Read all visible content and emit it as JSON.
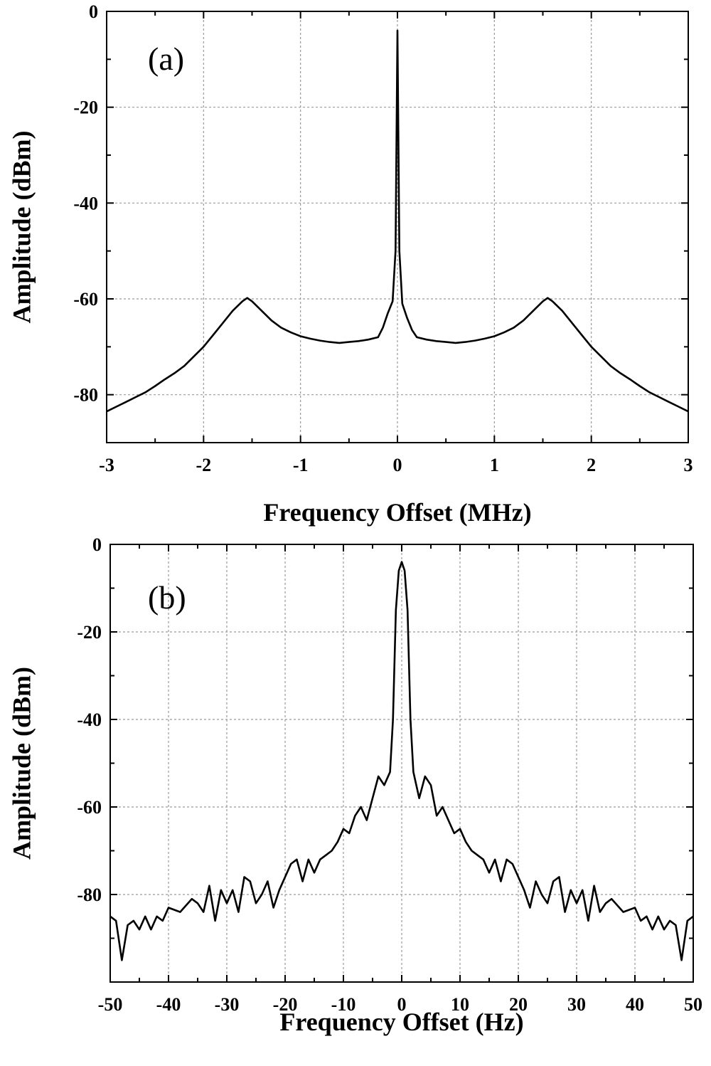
{
  "chart_data": [
    {
      "type": "line",
      "panel_label": "(a)",
      "xlabel": "Frequency Offset (MHz)",
      "ylabel": "Amplitude (dBm)",
      "xlim": [
        -3,
        3
      ],
      "ylim": [
        -90,
        0
      ],
      "x_ticks": [
        "-3",
        "-2",
        "-1",
        "0",
        "1",
        "2",
        "3"
      ],
      "y_ticks": [
        "0",
        "-20",
        "-40",
        "-60",
        "-80"
      ],
      "grid": true,
      "series": [
        {
          "x": [
            -3.0,
            -2.9,
            -2.8,
            -2.7,
            -2.6,
            -2.5,
            -2.4,
            -2.3,
            -2.2,
            -2.1,
            -2.0,
            -1.9,
            -1.8,
            -1.7,
            -1.6,
            -1.55,
            -1.5,
            -1.4,
            -1.3,
            -1.2,
            -1.1,
            -1.0,
            -0.9,
            -0.8,
            -0.7,
            -0.6,
            -0.5,
            -0.4,
            -0.3,
            -0.2,
            -0.15,
            -0.1,
            -0.05,
            -0.02,
            0.0,
            0.02,
            0.05,
            0.1,
            0.15,
            0.2,
            0.3,
            0.4,
            0.5,
            0.6,
            0.7,
            0.8,
            0.9,
            1.0,
            1.1,
            1.2,
            1.3,
            1.4,
            1.5,
            1.55,
            1.6,
            1.7,
            1.8,
            1.9,
            2.0,
            2.1,
            2.2,
            2.3,
            2.4,
            2.5,
            2.6,
            2.7,
            2.8,
            2.9,
            3.0
          ],
          "y": [
            -83.5,
            -82.5,
            -81.5,
            -80.5,
            -79.5,
            -78.2,
            -76.8,
            -75.5,
            -74.0,
            -72.0,
            -70.0,
            -67.5,
            -65.0,
            -62.5,
            -60.5,
            -59.8,
            -60.5,
            -62.5,
            -64.5,
            -66.0,
            -67.0,
            -67.8,
            -68.3,
            -68.7,
            -69.0,
            -69.2,
            -69.0,
            -68.8,
            -68.5,
            -68.0,
            -66.0,
            -63.0,
            -60.5,
            -50.0,
            -4.0,
            -50.0,
            -61.0,
            -64.0,
            -66.5,
            -68.0,
            -68.5,
            -68.8,
            -69.0,
            -69.2,
            -69.0,
            -68.7,
            -68.3,
            -67.8,
            -67.0,
            -66.0,
            -64.5,
            -62.5,
            -60.5,
            -59.8,
            -60.5,
            -62.5,
            -65.0,
            -67.5,
            -70.0,
            -72.0,
            -74.0,
            -75.5,
            -76.8,
            -78.2,
            -79.5,
            -80.5,
            -81.5,
            -82.5,
            -83.5
          ]
        }
      ]
    },
    {
      "type": "line",
      "panel_label": "(b)",
      "xlabel": "Frequency Offset (Hz)",
      "ylabel": "Amplitude (dBm)",
      "xlim": [
        -50,
        50
      ],
      "ylim": [
        -100,
        0
      ],
      "x_ticks": [
        "-50",
        "-40",
        "-30",
        "-20",
        "-10",
        "0",
        "10",
        "20",
        "30",
        "40",
        "50"
      ],
      "y_ticks": [
        "0",
        "-20",
        "-40",
        "-60",
        "-80"
      ],
      "grid": true,
      "series": [
        {
          "x": [
            -50,
            -49,
            -48,
            -47,
            -46,
            -45,
            -44,
            -43,
            -42,
            -41,
            -40,
            -38,
            -36,
            -35,
            -34,
            -33,
            -32,
            -31,
            -30,
            -29,
            -28,
            -27,
            -26,
            -25,
            -24,
            -23,
            -22,
            -21,
            -20,
            -19,
            -18,
            -17,
            -16,
            -15,
            -14,
            -13,
            -12,
            -11,
            -10,
            -9,
            -8,
            -7,
            -6,
            -5,
            -4,
            -3,
            -2,
            -1.5,
            -1,
            -0.5,
            0,
            0.5,
            1,
            1.5,
            2,
            3,
            4,
            5,
            6,
            7,
            8,
            9,
            10,
            11,
            12,
            13,
            14,
            15,
            16,
            17,
            18,
            19,
            20,
            21,
            22,
            23,
            24,
            25,
            26,
            27,
            28,
            29,
            30,
            31,
            32,
            33,
            34,
            35,
            36,
            38,
            40,
            41,
            42,
            43,
            44,
            45,
            46,
            47,
            48,
            49,
            50
          ],
          "y": [
            -85,
            -86,
            -95,
            -87,
            -86,
            -88,
            -85,
            -88,
            -85,
            -86,
            -83,
            -84,
            -81,
            -82,
            -84,
            -78,
            -86,
            -79,
            -82,
            -79,
            -84,
            -76,
            -77,
            -82,
            -80,
            -77,
            -83,
            -79,
            -76,
            -73,
            -72,
            -77,
            -72,
            -75,
            -72,
            -71,
            -70,
            -68,
            -65,
            -66,
            -62,
            -60,
            -63,
            -58,
            -53,
            -55,
            -52,
            -40,
            -15,
            -6,
            -4,
            -6,
            -15,
            -40,
            -52,
            -58,
            -53,
            -55,
            -62,
            -60,
            -63,
            -66,
            -65,
            -68,
            -70,
            -71,
            -72,
            -75,
            -72,
            -77,
            -72,
            -73,
            -76,
            -79,
            -83,
            -77,
            -80,
            -82,
            -77,
            -76,
            -84,
            -79,
            -82,
            -79,
            -86,
            -78,
            -84,
            -82,
            -81,
            -84,
            -83,
            -86,
            -85,
            -88,
            -85,
            -88,
            -86,
            -87,
            -95,
            -86,
            -85
          ]
        }
      ]
    }
  ]
}
